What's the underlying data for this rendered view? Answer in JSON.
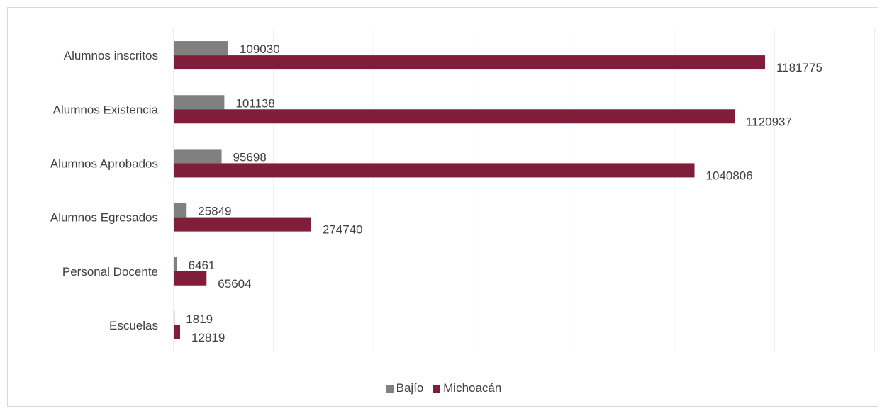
{
  "chart_data": {
    "type": "bar",
    "orientation": "horizontal",
    "categories": [
      "Alumnos inscritos",
      "Alumnos Existencia",
      "Alumnos Aprobados",
      "Alumnos Egresados",
      "Personal Docente",
      "Escuelas"
    ],
    "series": [
      {
        "name": "Bajío",
        "color": "#808080",
        "values": [
          109030,
          101138,
          95698,
          25849,
          6461,
          1819
        ]
      },
      {
        "name": "Michoacán",
        "color": "#7f1d3a",
        "values": [
          1181775,
          1120937,
          1040806,
          274740,
          65604,
          12819
        ]
      }
    ],
    "xlim": [
      0,
      1400000
    ],
    "grid": true,
    "legend_position": "bottom"
  }
}
